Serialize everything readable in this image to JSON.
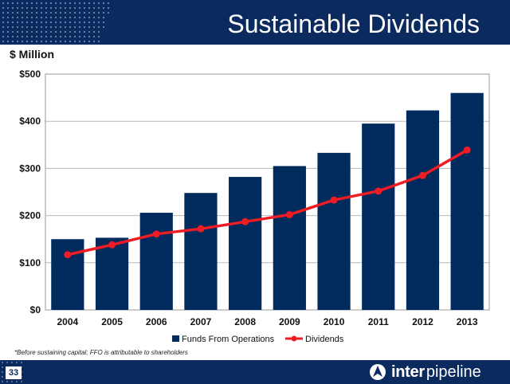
{
  "header": {
    "title": "Sustainable Dividends"
  },
  "unit_label": "$ Million",
  "footnote": "*Before sustaining capital; FFO is attributable to shareholders",
  "footer": {
    "page_number": "33",
    "logo_bold": "inter",
    "logo_light": "pipeline"
  },
  "colors": {
    "navy": "#0b2a5e",
    "bar": "#002b5c",
    "line": "#ee1c24"
  },
  "icons": {
    "logo": "inter-pipeline-logo-icon"
  },
  "chart_data": {
    "type": "bar",
    "categories": [
      "2004",
      "2005",
      "2006",
      "2007",
      "2008",
      "2009",
      "2010",
      "2011",
      "2012",
      "2013"
    ],
    "series": [
      {
        "name": "Funds From Operations",
        "type": "bar",
        "values": [
          150,
          153,
          206,
          248,
          282,
          305,
          333,
          395,
          423,
          460
        ]
      },
      {
        "name": "Dividends",
        "type": "line",
        "values": [
          117,
          138,
          161,
          172,
          187,
          202,
          233,
          252,
          285,
          339
        ]
      }
    ],
    "ylim": [
      0,
      500
    ],
    "yticks": [
      0,
      100,
      200,
      300,
      400,
      500
    ],
    "ytick_labels": [
      "$0",
      "$100",
      "$200",
      "$300",
      "$400",
      "$500"
    ],
    "grid": true,
    "legend_position": "bottom"
  }
}
